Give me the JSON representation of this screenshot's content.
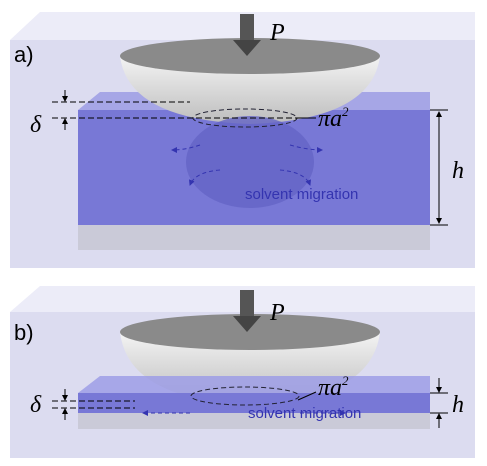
{
  "panels": [
    {
      "label": "a)",
      "load": "P",
      "delta": "δ",
      "contact": "πa",
      "exponent": "2",
      "thickness": "h",
      "migration": "solvent migration"
    },
    {
      "label": "b)",
      "load": "P",
      "delta": "δ",
      "contact": "πa",
      "exponent": "2",
      "thickness": "h",
      "migration": "solvent migration"
    }
  ]
}
